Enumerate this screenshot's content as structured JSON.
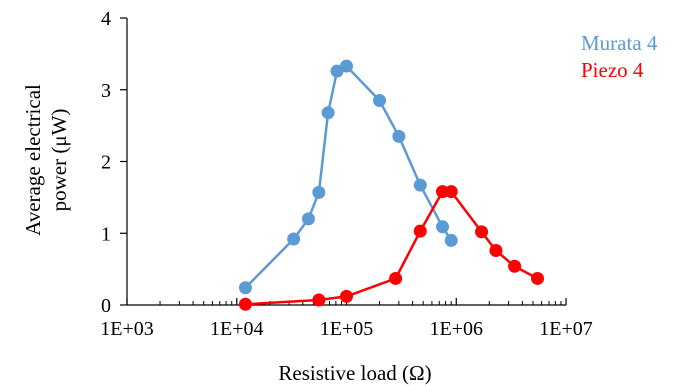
{
  "chart_data": {
    "type": "scatter",
    "title": "",
    "xlabel": "Resistive load (Ω)",
    "ylabel_line1": "Average electrical",
    "ylabel_line2": "power (μW)",
    "x_scale": "log",
    "xlim": [
      1000,
      10000000
    ],
    "ylim": [
      0,
      4
    ],
    "x_ticks": [
      1000,
      10000,
      100000,
      1000000,
      10000000
    ],
    "x_tick_labels": [
      "1E+03",
      "1E+04",
      "1E+05",
      "1E+06",
      "1E+07"
    ],
    "y_ticks": [
      0,
      1,
      2,
      3,
      4
    ],
    "y_tick_labels": [
      "0",
      "1",
      "2",
      "3",
      "4"
    ],
    "grid": false,
    "legend_position": "right",
    "series": [
      {
        "name": "Murata 4",
        "color": "#5B9BD5",
        "points": [
          {
            "x": 12000,
            "y": 0.24
          },
          {
            "x": 33000,
            "y": 0.92
          },
          {
            "x": 45000,
            "y": 1.2
          },
          {
            "x": 56000,
            "y": 1.57
          },
          {
            "x": 68000,
            "y": 2.68
          },
          {
            "x": 82000,
            "y": 3.26
          },
          {
            "x": 100000,
            "y": 3.33
          },
          {
            "x": 200000,
            "y": 2.85
          },
          {
            "x": 300000,
            "y": 2.35
          },
          {
            "x": 470000,
            "y": 1.67
          },
          {
            "x": 750000,
            "y": 1.09
          },
          {
            "x": 900000,
            "y": 0.9
          }
        ]
      },
      {
        "name": "Piezo 4",
        "color": "#FF0000",
        "points": [
          {
            "x": 12000,
            "y": 0.01
          },
          {
            "x": 56000,
            "y": 0.07
          },
          {
            "x": 100000,
            "y": 0.12
          },
          {
            "x": 280000,
            "y": 0.37
          },
          {
            "x": 470000,
            "y": 1.03
          },
          {
            "x": 750000,
            "y": 1.58
          },
          {
            "x": 900000,
            "y": 1.58
          },
          {
            "x": 1700000,
            "y": 1.02
          },
          {
            "x": 2300000,
            "y": 0.76
          },
          {
            "x": 3400000,
            "y": 0.54
          },
          {
            "x": 5500000,
            "y": 0.37
          }
        ]
      }
    ]
  }
}
